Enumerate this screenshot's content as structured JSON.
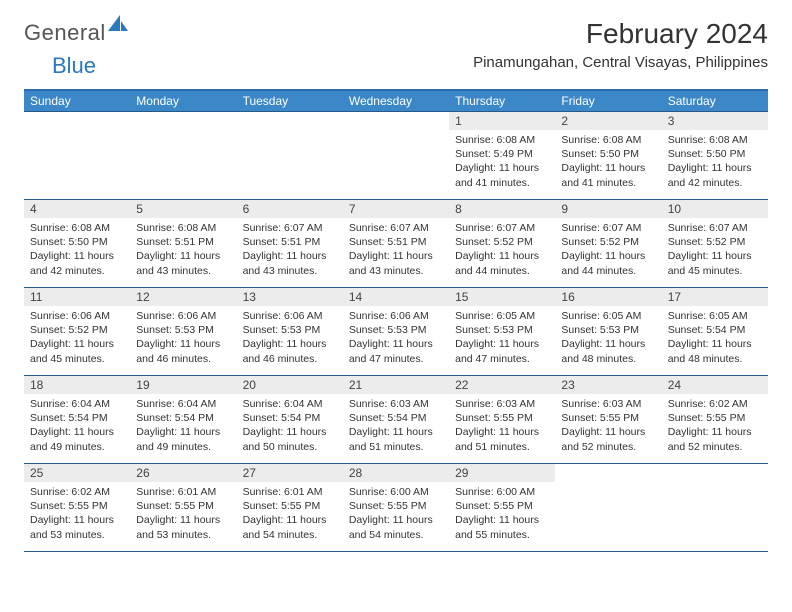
{
  "brand": {
    "part1": "General",
    "part2": "Blue"
  },
  "title": "February 2024",
  "location": "Pinamungahan, Central Visayas, Philippines",
  "colors": {
    "header_bg": "#3b87c8",
    "header_border": "#2a6da8",
    "cell_border": "#255a8a",
    "daynum_bg": "#ececec",
    "brand_blue": "#2a78bd"
  },
  "weekdays": [
    "Sunday",
    "Monday",
    "Tuesday",
    "Wednesday",
    "Thursday",
    "Friday",
    "Saturday"
  ],
  "weeks": [
    [
      {
        "n": "",
        "sr": "",
        "ss": "",
        "dl": ""
      },
      {
        "n": "",
        "sr": "",
        "ss": "",
        "dl": ""
      },
      {
        "n": "",
        "sr": "",
        "ss": "",
        "dl": ""
      },
      {
        "n": "",
        "sr": "",
        "ss": "",
        "dl": ""
      },
      {
        "n": "1",
        "sr": "Sunrise: 6:08 AM",
        "ss": "Sunset: 5:49 PM",
        "dl": "Daylight: 11 hours and 41 minutes."
      },
      {
        "n": "2",
        "sr": "Sunrise: 6:08 AM",
        "ss": "Sunset: 5:50 PM",
        "dl": "Daylight: 11 hours and 41 minutes."
      },
      {
        "n": "3",
        "sr": "Sunrise: 6:08 AM",
        "ss": "Sunset: 5:50 PM",
        "dl": "Daylight: 11 hours and 42 minutes."
      }
    ],
    [
      {
        "n": "4",
        "sr": "Sunrise: 6:08 AM",
        "ss": "Sunset: 5:50 PM",
        "dl": "Daylight: 11 hours and 42 minutes."
      },
      {
        "n": "5",
        "sr": "Sunrise: 6:08 AM",
        "ss": "Sunset: 5:51 PM",
        "dl": "Daylight: 11 hours and 43 minutes."
      },
      {
        "n": "6",
        "sr": "Sunrise: 6:07 AM",
        "ss": "Sunset: 5:51 PM",
        "dl": "Daylight: 11 hours and 43 minutes."
      },
      {
        "n": "7",
        "sr": "Sunrise: 6:07 AM",
        "ss": "Sunset: 5:51 PM",
        "dl": "Daylight: 11 hours and 43 minutes."
      },
      {
        "n": "8",
        "sr": "Sunrise: 6:07 AM",
        "ss": "Sunset: 5:52 PM",
        "dl": "Daylight: 11 hours and 44 minutes."
      },
      {
        "n": "9",
        "sr": "Sunrise: 6:07 AM",
        "ss": "Sunset: 5:52 PM",
        "dl": "Daylight: 11 hours and 44 minutes."
      },
      {
        "n": "10",
        "sr": "Sunrise: 6:07 AM",
        "ss": "Sunset: 5:52 PM",
        "dl": "Daylight: 11 hours and 45 minutes."
      }
    ],
    [
      {
        "n": "11",
        "sr": "Sunrise: 6:06 AM",
        "ss": "Sunset: 5:52 PM",
        "dl": "Daylight: 11 hours and 45 minutes."
      },
      {
        "n": "12",
        "sr": "Sunrise: 6:06 AM",
        "ss": "Sunset: 5:53 PM",
        "dl": "Daylight: 11 hours and 46 minutes."
      },
      {
        "n": "13",
        "sr": "Sunrise: 6:06 AM",
        "ss": "Sunset: 5:53 PM",
        "dl": "Daylight: 11 hours and 46 minutes."
      },
      {
        "n": "14",
        "sr": "Sunrise: 6:06 AM",
        "ss": "Sunset: 5:53 PM",
        "dl": "Daylight: 11 hours and 47 minutes."
      },
      {
        "n": "15",
        "sr": "Sunrise: 6:05 AM",
        "ss": "Sunset: 5:53 PM",
        "dl": "Daylight: 11 hours and 47 minutes."
      },
      {
        "n": "16",
        "sr": "Sunrise: 6:05 AM",
        "ss": "Sunset: 5:53 PM",
        "dl": "Daylight: 11 hours and 48 minutes."
      },
      {
        "n": "17",
        "sr": "Sunrise: 6:05 AM",
        "ss": "Sunset: 5:54 PM",
        "dl": "Daylight: 11 hours and 48 minutes."
      }
    ],
    [
      {
        "n": "18",
        "sr": "Sunrise: 6:04 AM",
        "ss": "Sunset: 5:54 PM",
        "dl": "Daylight: 11 hours and 49 minutes."
      },
      {
        "n": "19",
        "sr": "Sunrise: 6:04 AM",
        "ss": "Sunset: 5:54 PM",
        "dl": "Daylight: 11 hours and 49 minutes."
      },
      {
        "n": "20",
        "sr": "Sunrise: 6:04 AM",
        "ss": "Sunset: 5:54 PM",
        "dl": "Daylight: 11 hours and 50 minutes."
      },
      {
        "n": "21",
        "sr": "Sunrise: 6:03 AM",
        "ss": "Sunset: 5:54 PM",
        "dl": "Daylight: 11 hours and 51 minutes."
      },
      {
        "n": "22",
        "sr": "Sunrise: 6:03 AM",
        "ss": "Sunset: 5:55 PM",
        "dl": "Daylight: 11 hours and 51 minutes."
      },
      {
        "n": "23",
        "sr": "Sunrise: 6:03 AM",
        "ss": "Sunset: 5:55 PM",
        "dl": "Daylight: 11 hours and 52 minutes."
      },
      {
        "n": "24",
        "sr": "Sunrise: 6:02 AM",
        "ss": "Sunset: 5:55 PM",
        "dl": "Daylight: 11 hours and 52 minutes."
      }
    ],
    [
      {
        "n": "25",
        "sr": "Sunrise: 6:02 AM",
        "ss": "Sunset: 5:55 PM",
        "dl": "Daylight: 11 hours and 53 minutes."
      },
      {
        "n": "26",
        "sr": "Sunrise: 6:01 AM",
        "ss": "Sunset: 5:55 PM",
        "dl": "Daylight: 11 hours and 53 minutes."
      },
      {
        "n": "27",
        "sr": "Sunrise: 6:01 AM",
        "ss": "Sunset: 5:55 PM",
        "dl": "Daylight: 11 hours and 54 minutes."
      },
      {
        "n": "28",
        "sr": "Sunrise: 6:00 AM",
        "ss": "Sunset: 5:55 PM",
        "dl": "Daylight: 11 hours and 54 minutes."
      },
      {
        "n": "29",
        "sr": "Sunrise: 6:00 AM",
        "ss": "Sunset: 5:55 PM",
        "dl": "Daylight: 11 hours and 55 minutes."
      },
      {
        "n": "",
        "sr": "",
        "ss": "",
        "dl": ""
      },
      {
        "n": "",
        "sr": "",
        "ss": "",
        "dl": ""
      }
    ]
  ]
}
